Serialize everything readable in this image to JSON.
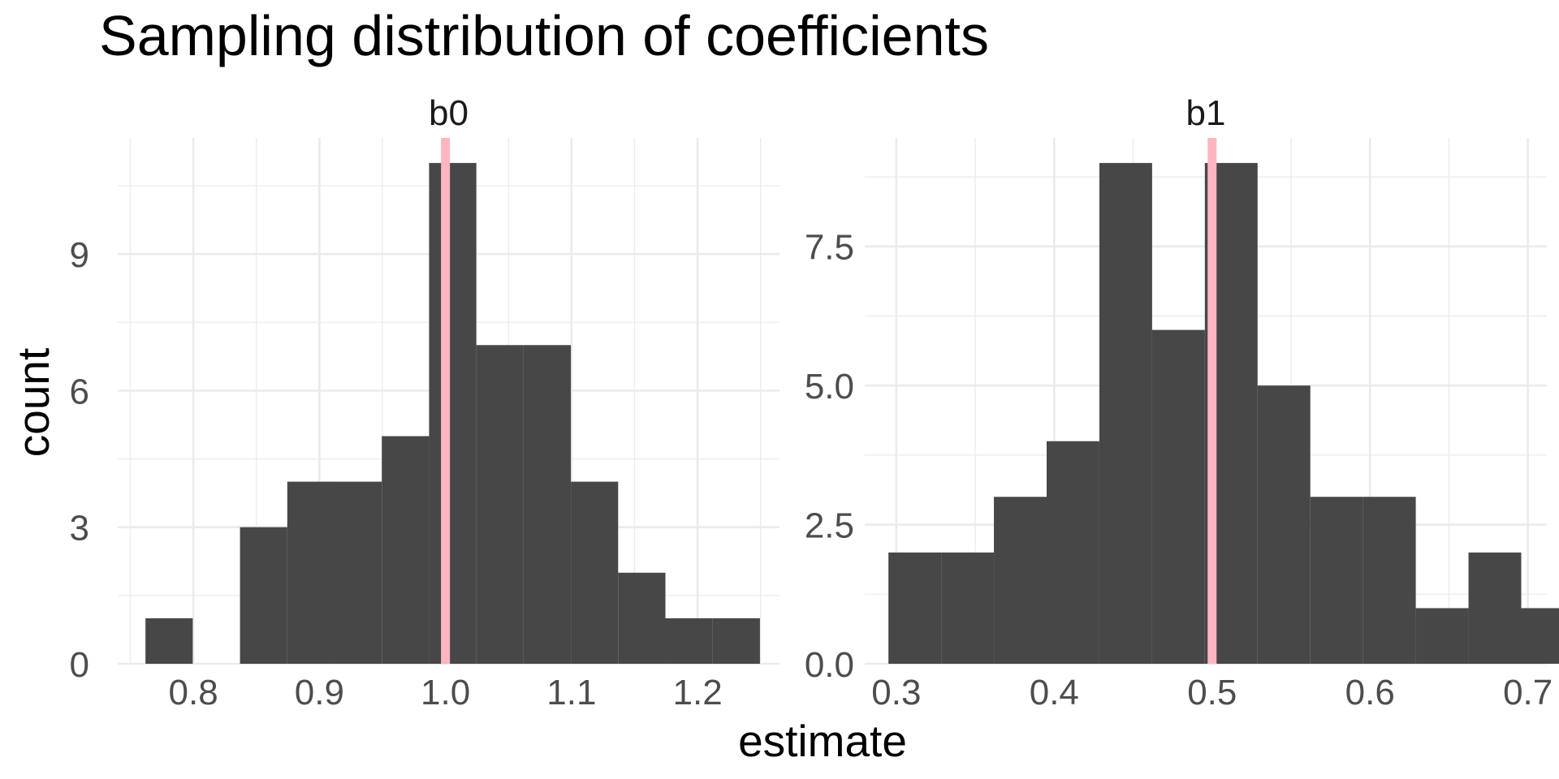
{
  "chart_data": {
    "type": "bar",
    "title": "Sampling distribution of coefficients",
    "xlabel": "estimate",
    "ylabel": "count",
    "grid": true,
    "legend": "none",
    "reference_line_color": "#FFB6C1",
    "bar_color": "#474747",
    "panels": [
      {
        "label": "b0",
        "xlim": [
          0.74,
          1.265
        ],
        "ylim": [
          0,
          11.55
        ],
        "x_ticks": [
          0.8,
          0.9,
          1.0,
          1.1,
          1.2
        ],
        "x_tick_labels": [
          "0.8",
          "0.9",
          "1.0",
          "1.1",
          "1.2"
        ],
        "y_ticks": [
          0,
          3,
          6,
          9
        ],
        "y_tick_labels": [
          "0",
          "3",
          "6",
          "9"
        ],
        "reference_x": 1.0,
        "bins": [
          {
            "x0": 0.762,
            "x1": 0.7995,
            "count": 1
          },
          {
            "x0": 0.7995,
            "x1": 0.837,
            "count": 0
          },
          {
            "x0": 0.837,
            "x1": 0.8745,
            "count": 3
          },
          {
            "x0": 0.8745,
            "x1": 0.912,
            "count": 4
          },
          {
            "x0": 0.912,
            "x1": 0.9495,
            "count": 4
          },
          {
            "x0": 0.9495,
            "x1": 0.987,
            "count": 5
          },
          {
            "x0": 0.987,
            "x1": 1.0245,
            "count": 11
          },
          {
            "x0": 1.0245,
            "x1": 1.062,
            "count": 7
          },
          {
            "x0": 1.062,
            "x1": 1.0995,
            "count": 7
          },
          {
            "x0": 1.0995,
            "x1": 1.137,
            "count": 4
          },
          {
            "x0": 1.137,
            "x1": 1.1745,
            "count": 2
          },
          {
            "x0": 1.1745,
            "x1": 1.212,
            "count": 1
          },
          {
            "x0": 1.212,
            "x1": 1.2495,
            "count": 1
          }
        ]
      },
      {
        "label": "b1",
        "xlim": [
          0.28,
          0.712
        ],
        "ylim": [
          0,
          9.45
        ],
        "x_ticks": [
          0.3,
          0.4,
          0.5,
          0.6,
          0.7
        ],
        "x_tick_labels": [
          "0.3",
          "0.4",
          "0.5",
          "0.6",
          "0.7"
        ],
        "y_ticks": [
          0,
          2.5,
          5,
          7.5
        ],
        "y_tick_labels": [
          "0.0",
          "2.5",
          "5.0",
          "7.5"
        ],
        "reference_x": 0.5,
        "bins": [
          {
            "x0": 0.295,
            "x1": 0.3284,
            "count": 2
          },
          {
            "x0": 0.3284,
            "x1": 0.3618,
            "count": 2
          },
          {
            "x0": 0.3618,
            "x1": 0.3952,
            "count": 3
          },
          {
            "x0": 0.3952,
            "x1": 0.4286,
            "count": 4
          },
          {
            "x0": 0.4286,
            "x1": 0.462,
            "count": 9
          },
          {
            "x0": 0.462,
            "x1": 0.4954,
            "count": 6
          },
          {
            "x0": 0.4954,
            "x1": 0.5288,
            "count": 9
          },
          {
            "x0": 0.5288,
            "x1": 0.5622,
            "count": 5
          },
          {
            "x0": 0.5622,
            "x1": 0.5956,
            "count": 3
          },
          {
            "x0": 0.5956,
            "x1": 0.629,
            "count": 3
          },
          {
            "x0": 0.629,
            "x1": 0.6624,
            "count": 1
          },
          {
            "x0": 0.6624,
            "x1": 0.6958,
            "count": 2
          },
          {
            "x0": 0.6958,
            "x1": 0.7292,
            "count": 1
          }
        ]
      }
    ]
  }
}
